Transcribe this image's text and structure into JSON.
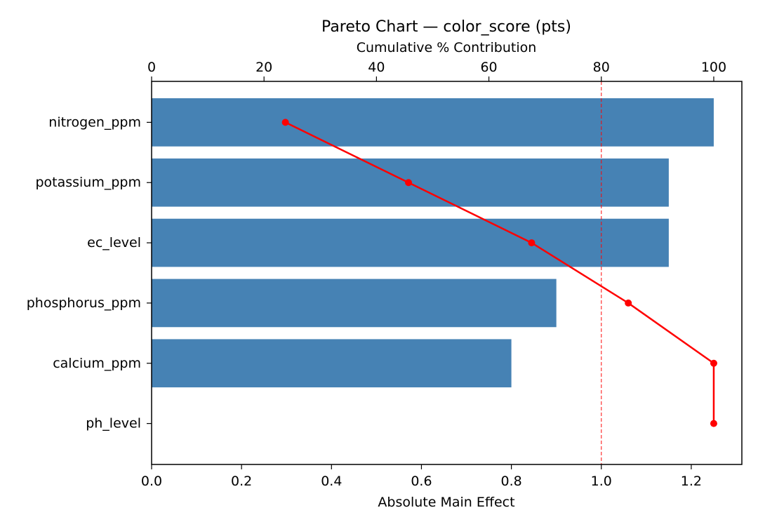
{
  "chart_data": {
    "type": "bar",
    "orientation": "horizontal",
    "title": "Pareto Chart — color_score (pts)",
    "xlabel": "Absolute Main Effect",
    "x2label": "Cumulative % Contribution",
    "categories": [
      "nitrogen_ppm",
      "potassium_ppm",
      "ec_level",
      "phosphorus_ppm",
      "calcium_ppm",
      "ph_level"
    ],
    "values": [
      1.25,
      1.15,
      1.15,
      0.9,
      0.8,
      0.0
    ],
    "cumulative_percent": [
      23.8,
      45.7,
      67.6,
      84.8,
      100.0,
      100.0
    ],
    "xlim": [
      0,
      1.3125
    ],
    "x2lim": [
      0,
      105
    ],
    "xticks": [
      "0.0",
      "0.2",
      "0.4",
      "0.6",
      "0.8",
      "1.0",
      "1.2"
    ],
    "x2ticks": [
      "0",
      "20",
      "40",
      "60",
      "80",
      "100"
    ],
    "threshold_percent": 80,
    "grid": false,
    "colors": {
      "bar": "#4682b4",
      "cumulative_line": "#ff0000",
      "threshold": "#ff0000"
    }
  }
}
